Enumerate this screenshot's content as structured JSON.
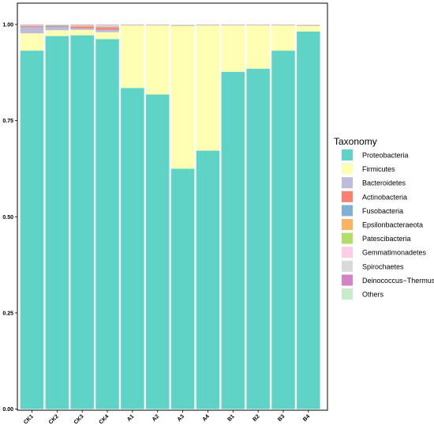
{
  "chart_data": {
    "type": "bar",
    "stacked": true,
    "orientation": "vertical",
    "categories": [
      "CK1",
      "CK2",
      "CK3",
      "CK4",
      "A1",
      "A2",
      "A3",
      "A4",
      "B1",
      "B2",
      "B3",
      "B4"
    ],
    "ylim": [
      0,
      1
    ],
    "yticks": [
      "0.00",
      "0.25",
      "0.50",
      "0.75",
      "1.00"
    ],
    "ytick_values": [
      0,
      0.25,
      0.5,
      0.75,
      1.0
    ],
    "grid": false,
    "legend": {
      "title": "Taxonomy",
      "position": "right"
    },
    "series": [
      {
        "name": "Proteobacteria",
        "color": "#5fd3c6",
        "values": [
          0.932,
          0.97,
          0.972,
          0.962,
          0.835,
          0.818,
          0.625,
          0.672,
          0.877,
          0.885,
          0.932,
          0.982
        ]
      },
      {
        "name": "Firmicutes",
        "color": "#ffffb3",
        "values": [
          0.045,
          0.015,
          0.014,
          0.018,
          0.163,
          0.18,
          0.372,
          0.326,
          0.121,
          0.113,
          0.066,
          0.015
        ]
      },
      {
        "name": "Bacteroidetes",
        "color": "#bebada",
        "values": [
          0.016,
          0.008,
          0.004,
          0.006,
          0.0,
          0.0,
          0.0,
          0.0,
          0.0,
          0.0,
          0.0,
          0.0
        ]
      },
      {
        "name": "Actinobacteria",
        "color": "#fb8072",
        "values": [
          0.002,
          0.001,
          0.004,
          0.005,
          0.0005,
          0.0005,
          0.0005,
          0.0005,
          0.0005,
          0.0005,
          0.0005,
          0.0005
        ]
      },
      {
        "name": "Fusobacteria",
        "color": "#80b1d3",
        "values": [
          0.001,
          0.003,
          0.001,
          0.002,
          0.0,
          0.0,
          0.0,
          0.0,
          0.0,
          0.0,
          0.0,
          0.0
        ]
      },
      {
        "name": "Epsilonbacteraeota",
        "color": "#fdb462",
        "values": [
          0.001,
          0.001,
          0.002,
          0.002,
          0.0,
          0.0,
          0.0,
          0.0,
          0.0,
          0.0,
          0.0,
          0.0
        ]
      },
      {
        "name": "Patescibacteria",
        "color": "#b3de69",
        "values": [
          0.0,
          0.0,
          0.0,
          0.0,
          0.0,
          0.0,
          0.0,
          0.0,
          0.0,
          0.0,
          0.0,
          0.0
        ]
      },
      {
        "name": "Gemmatimonadetes",
        "color": "#fccde5",
        "values": [
          0.001,
          0.0,
          0.001,
          0.002,
          0.0,
          0.0,
          0.0,
          0.0,
          0.0,
          0.0,
          0.0,
          0.0
        ]
      },
      {
        "name": "Spirochaetes",
        "color": "#d9d9d9",
        "values": [
          0.0,
          0.001,
          0.0,
          0.001,
          0.0,
          0.0,
          0.0,
          0.0,
          0.0,
          0.0,
          0.0,
          0.0
        ]
      },
      {
        "name": "Deinococcus−Thermus",
        "color": "#d484c6",
        "values": [
          0.001,
          0.0,
          0.001,
          0.001,
          0.0005,
          0.0005,
          0.0005,
          0.0005,
          0.0005,
          0.0005,
          0.0005,
          0.0005
        ]
      },
      {
        "name": "Others",
        "color": "#c7ebcb",
        "values": [
          0.001,
          0.001,
          0.001,
          0.001,
          0.001,
          0.001,
          0.002,
          0.001,
          0.001,
          0.001,
          0.001,
          0.002
        ]
      }
    ]
  }
}
